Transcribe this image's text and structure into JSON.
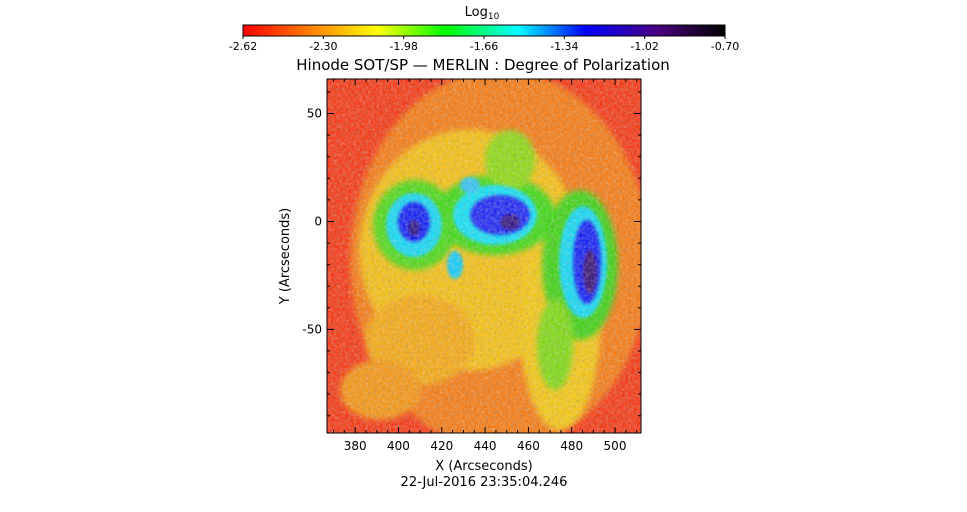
{
  "colorbar": {
    "label_main": "Log",
    "label_sub": "10",
    "ticks": [
      "-2.62",
      "-2.30",
      "-1.98",
      "-1.66",
      "-1.34",
      "-1.02",
      "-0.70"
    ],
    "range": [
      -2.62,
      -0.7
    ],
    "colormap": [
      "#ff0000",
      "#ff8000",
      "#ffff00",
      "#00ff00",
      "#00ffff",
      "#0000ff",
      "#4b0082",
      "#000000"
    ]
  },
  "chart_data": {
    "type": "heatmap",
    "title": "Hinode SOT/SP — MERLIN : Degree of Polarization",
    "xlabel": "X (Arcseconds)",
    "ylabel": "Y (Arcseconds)",
    "xlim": [
      367,
      512
    ],
    "ylim": [
      -98,
      66
    ],
    "xticks": [
      380,
      400,
      420,
      440,
      460,
      480,
      500
    ],
    "yticks": [
      50,
      0,
      -50
    ],
    "value_range": [
      -2.62,
      -0.7
    ],
    "sunspots": [
      {
        "x": 407,
        "y": 0,
        "value": -1.0
      },
      {
        "x": 446,
        "y": 2,
        "value": -0.9
      },
      {
        "x": 489,
        "y": -17,
        "value": -0.9
      }
    ],
    "background_value": -2.5
  },
  "footer": {
    "timestamp": "22-Jul-2016 23:35:04.246"
  }
}
